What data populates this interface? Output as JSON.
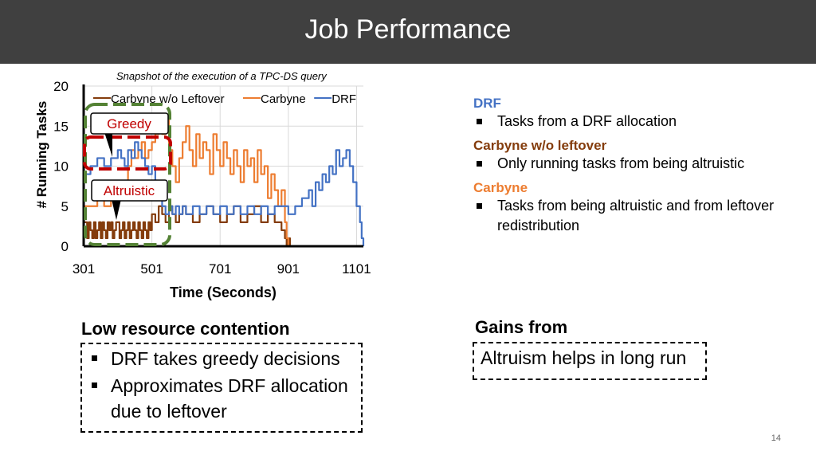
{
  "header": {
    "title": "Job Performance"
  },
  "chart_data": {
    "type": "line",
    "title": "Snapshot of the execution of a TPC-DS query",
    "xlabel": "Time (Seconds)",
    "ylabel": "# Running Tasks",
    "xlim": [
      301,
      1121
    ],
    "ylim": [
      0,
      20
    ],
    "x_ticks": [
      301,
      501,
      701,
      901,
      1101
    ],
    "y_ticks": [
      0,
      5,
      10,
      15,
      20
    ],
    "grid": true,
    "legend_position": "top",
    "series": [
      {
        "name": "Carbyne w/o Leftover",
        "color": "#843c0c",
        "x": [
          301,
          311,
          316,
          321,
          326,
          331,
          336,
          341,
          346,
          351,
          356,
          361,
          366,
          371,
          376,
          381,
          386,
          391,
          396,
          401,
          406,
          411,
          416,
          421,
          426,
          431,
          436,
          441,
          446,
          451,
          456,
          461,
          466,
          471,
          476,
          481,
          486,
          491,
          496,
          501,
          511,
          521,
          531,
          541,
          551,
          561,
          571,
          581,
          591,
          601,
          621,
          641,
          661,
          681,
          701,
          721,
          741,
          761,
          781,
          801,
          821,
          841,
          861,
          881,
          891,
          896,
          901,
          906
        ],
        "y": [
          3,
          1,
          3,
          2,
          1,
          3,
          1,
          2,
          3,
          1,
          3,
          2,
          1,
          3,
          2,
          3,
          1,
          2,
          3,
          3,
          1,
          2,
          3,
          1,
          2,
          3,
          1,
          2,
          3,
          2,
          1,
          3,
          2,
          1,
          3,
          2,
          1,
          3,
          2,
          4,
          3,
          5,
          4,
          3,
          5,
          4,
          3,
          4,
          5,
          4,
          3,
          4,
          5,
          4,
          3,
          4,
          5,
          3,
          4,
          5,
          3,
          4,
          3,
          2,
          1,
          0,
          1,
          0
        ]
      },
      {
        "name": "Carbyne",
        "color": "#ed7d31",
        "x": [
          301,
          321,
          341,
          361,
          381,
          401,
          411,
          421,
          431,
          441,
          451,
          461,
          471,
          481,
          491,
          501,
          511,
          521,
          531,
          541,
          551,
          561,
          571,
          581,
          591,
          601,
          611,
          621,
          631,
          641,
          651,
          661,
          671,
          681,
          691,
          701,
          711,
          721,
          731,
          741,
          751,
          761,
          771,
          781,
          791,
          801,
          811,
          821,
          831,
          841,
          851,
          861,
          871,
          881,
          891,
          896,
          901
        ],
        "y": [
          5,
          5,
          6,
          5,
          6,
          6,
          7,
          8,
          10,
          12,
          11,
          12,
          13,
          11,
          12,
          13,
          14,
          16,
          14,
          16,
          12,
          10,
          8,
          11,
          13,
          15,
          12,
          10,
          14,
          11,
          13,
          12,
          9,
          14,
          12,
          10,
          13,
          11,
          9,
          12,
          10,
          8,
          12,
          10,
          11,
          8,
          12,
          9,
          10,
          6,
          9,
          7,
          5,
          7,
          3,
          1,
          0
        ]
      },
      {
        "name": "DRF",
        "color": "#4472c4",
        "x": [
          301,
          321,
          341,
          361,
          381,
          401,
          411,
          421,
          431,
          441,
          451,
          461,
          471,
          481,
          491,
          501,
          511,
          521,
          531,
          541,
          551,
          561,
          571,
          581,
          591,
          601,
          621,
          641,
          661,
          681,
          701,
          721,
          741,
          761,
          781,
          801,
          821,
          841,
          861,
          881,
          901,
          921,
          941,
          961,
          971,
          981,
          991,
          1001,
          1011,
          1021,
          1031,
          1041,
          1051,
          1061,
          1071,
          1081,
          1091,
          1101,
          1111,
          1116,
          1121
        ],
        "y": [
          9,
          10,
          11,
          10,
          11,
          12,
          11,
          10,
          12,
          11,
          13,
          12,
          11,
          10,
          9,
          10,
          8,
          6,
          5,
          4,
          5,
          4,
          5,
          4,
          5,
          4,
          5,
          4,
          5,
          4,
          5,
          4,
          5,
          4,
          5,
          4,
          5,
          4,
          5,
          5,
          4,
          5,
          6,
          7,
          5,
          8,
          7,
          9,
          8,
          10,
          9,
          12,
          10,
          11,
          12,
          10,
          8,
          5,
          3,
          1,
          0
        ]
      }
    ]
  },
  "annotations": {
    "greedy": "Greedy",
    "altruistic": "Altruistic"
  },
  "right_panel": {
    "drf_heading": "DRF",
    "drf_bullet": "Tasks from a DRF allocation",
    "cwl_heading": "Carbyne w/o leftover",
    "cwl_bullet": "Only running tasks from being altruistic",
    "carbyne_heading": "Carbyne",
    "carbyne_bullet": "Tasks from being altruistic and from leftover redistribution",
    "colors": {
      "drf": "#4472c4",
      "cwl": "#843c0c",
      "carbyne": "#ed7d31"
    }
  },
  "low_contention": {
    "title": "Low resource contention",
    "bullets": [
      "DRF takes greedy decisions",
      "Approximates DRF allocation due to leftover"
    ]
  },
  "gains": {
    "title": "Gains from",
    "text": "Altruism helps in long run"
  },
  "page_number": "14"
}
